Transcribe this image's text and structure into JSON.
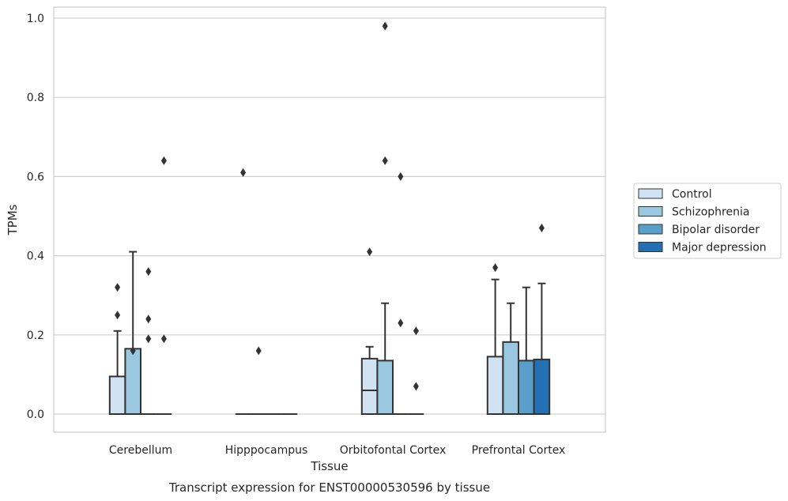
{
  "chart_data": {
    "type": "box",
    "title": "Transcript expression for ENST00000530596 by tissue",
    "xlabel": "Tissue",
    "ylabel": "TPMs",
    "ylim": [
      -0.045,
      1.03
    ],
    "yticks": [
      "0.0",
      "0.2",
      "0.4",
      "0.6",
      "0.8",
      "1.0"
    ],
    "grid": true,
    "legend_position": "right",
    "categories": [
      "Cerebellum",
      "Hipppocampus",
      "Orbitofontal Cortex",
      "Prefrontal Cortex"
    ],
    "series": [
      {
        "name": "Control",
        "color": "#d1e2f2",
        "boxes": [
          {
            "q1": 0.0,
            "median": 0.0,
            "q3": 0.095,
            "whisker_low": 0.0,
            "whisker_high": 0.21,
            "outliers": [
              0.25,
              0.32
            ]
          },
          {
            "q1": 0.0,
            "median": 0.0,
            "q3": 0.0,
            "whisker_low": 0.0,
            "whisker_high": 0.0,
            "outliers": [
              0.61
            ]
          },
          {
            "q1": 0.0,
            "median": 0.06,
            "q3": 0.14,
            "whisker_low": 0.0,
            "whisker_high": 0.17,
            "outliers": [
              0.41
            ]
          },
          {
            "q1": 0.0,
            "median": 0.0,
            "q3": 0.145,
            "whisker_low": 0.0,
            "whisker_high": 0.34,
            "outliers": [
              0.37
            ]
          }
        ]
      },
      {
        "name": "Schizophrenia",
        "color": "#9ac8e0",
        "boxes": [
          {
            "q1": 0.0,
            "median": 0.0,
            "q3": 0.165,
            "whisker_low": 0.0,
            "whisker_high": 0.41,
            "outliers": [
              0.16
            ]
          },
          {
            "q1": 0.0,
            "median": 0.0,
            "q3": 0.0,
            "whisker_low": 0.0,
            "whisker_high": 0.0,
            "outliers": [
              0.16
            ]
          },
          {
            "q1": 0.0,
            "median": 0.0,
            "q3": 0.135,
            "whisker_low": 0.0,
            "whisker_high": 0.28,
            "outliers": [
              0.64,
              0.98
            ]
          },
          {
            "q1": 0.0,
            "median": 0.0,
            "q3": 0.182,
            "whisker_low": 0.0,
            "whisker_high": 0.28,
            "outliers": []
          }
        ]
      },
      {
        "name": "Bipolar disorder",
        "color": "#5a9fc9",
        "boxes": [
          {
            "q1": 0.0,
            "median": 0.0,
            "q3": 0.0,
            "whisker_low": 0.0,
            "whisker_high": 0.0,
            "outliers": [
              0.19,
              0.24,
              0.36
            ]
          },
          {
            "q1": 0.0,
            "median": 0.0,
            "q3": 0.0,
            "whisker_low": 0.0,
            "whisker_high": 0.0,
            "outliers": []
          },
          {
            "q1": 0.0,
            "median": 0.0,
            "q3": 0.0,
            "whisker_low": 0.0,
            "whisker_high": 0.0,
            "outliers": [
              0.23,
              0.6
            ]
          },
          {
            "q1": 0.0,
            "median": 0.0,
            "q3": 0.135,
            "whisker_low": 0.0,
            "whisker_high": 0.32,
            "outliers": []
          }
        ]
      },
      {
        "name": "Major depression",
        "color": "#2470b4",
        "boxes": [
          {
            "q1": 0.0,
            "median": 0.0,
            "q3": 0.0,
            "whisker_low": 0.0,
            "whisker_high": 0.0,
            "outliers": [
              0.19,
              0.64
            ]
          },
          {
            "q1": 0.0,
            "median": 0.0,
            "q3": 0.0,
            "whisker_low": 0.0,
            "whisker_high": 0.0,
            "outliers": []
          },
          {
            "q1": 0.0,
            "median": 0.0,
            "q3": 0.0,
            "whisker_low": 0.0,
            "whisker_high": 0.0,
            "outliers": [
              0.07,
              0.21
            ]
          },
          {
            "q1": 0.0,
            "median": 0.0,
            "q3": 0.138,
            "whisker_low": 0.0,
            "whisker_high": 0.33,
            "outliers": [
              0.47
            ]
          }
        ]
      }
    ]
  }
}
